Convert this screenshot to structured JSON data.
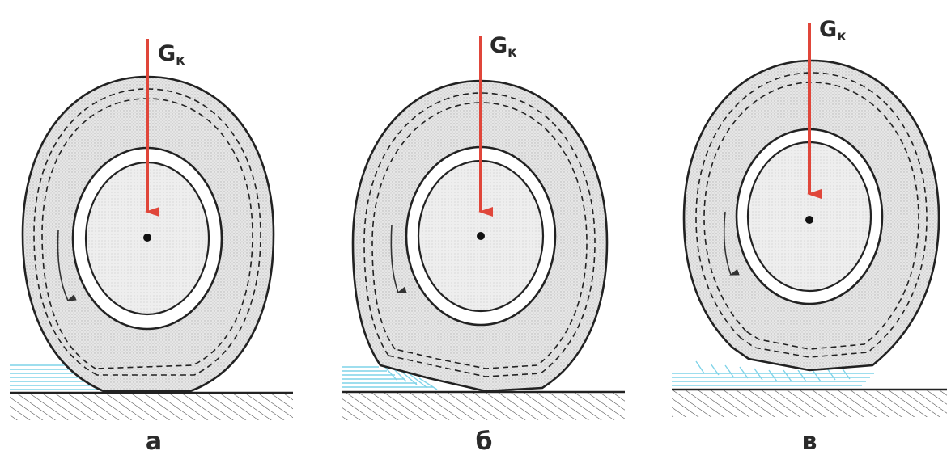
{
  "diagram": {
    "force_symbol": "G",
    "force_subscript": "к",
    "panels": [
      {
        "id": "a",
        "label": "а"
      },
      {
        "id": "b",
        "label": "б"
      },
      {
        "id": "v",
        "label": "в"
      }
    ],
    "colors": {
      "force_arrow": "#e0463a",
      "water": "#7fd3e8",
      "outline": "#222222",
      "tire_fill": "#e3e3e3"
    }
  }
}
